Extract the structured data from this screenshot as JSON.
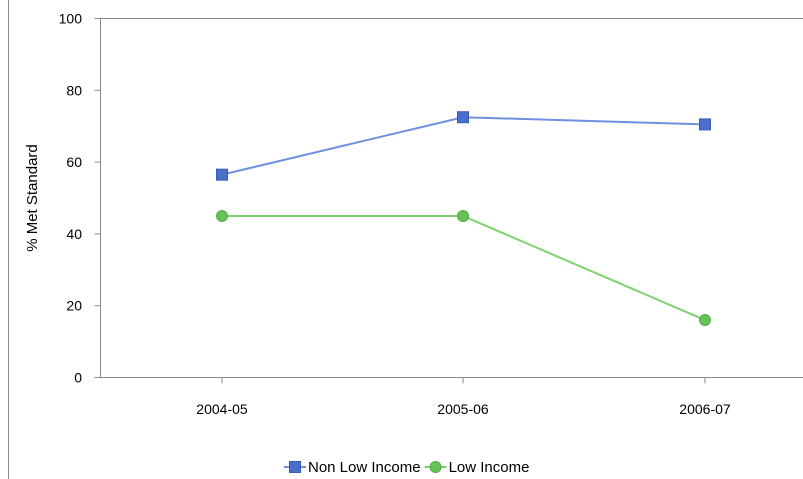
{
  "chart_data": {
    "type": "line",
    "categories": [
      "2004-05",
      "2005-06",
      "2006-07"
    ],
    "ylabel": "% Met Standard",
    "ylim": [
      0,
      100
    ],
    "yticks": [
      0,
      20,
      40,
      60,
      80,
      100
    ],
    "legend_position": "bottom",
    "series": [
      {
        "name": "Non Low Income",
        "values": [
          56.5,
          72.5,
          70.5
        ],
        "color": "#6f90e0",
        "marker": "square",
        "marker_color": "#4a6fcb"
      },
      {
        "name": "Low Income",
        "values": [
          45,
          45,
          16
        ],
        "color": "#7ed36f",
        "marker": "circle",
        "marker_color": "#64c257"
      }
    ]
  }
}
